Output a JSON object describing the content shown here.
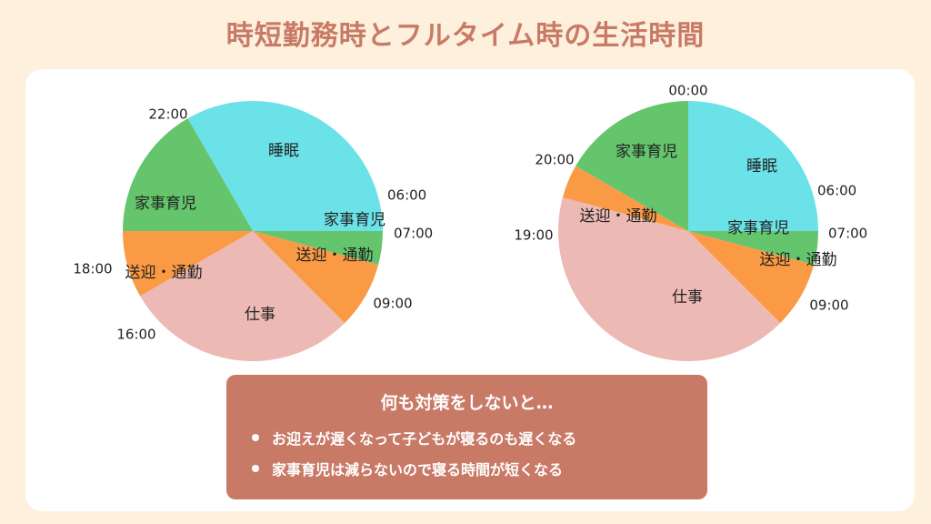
{
  "title": "時短勤務時とフルタイム時の生活時間",
  "colors": {
    "sleep": "#6be2e8",
    "chores": "#64c56c",
    "commute": "#fb9a44",
    "work": "#ecb9b4",
    "title": "#c97a66",
    "background": "#fdf0dc"
  },
  "chart_data": [
    {
      "type": "pie",
      "slices": [
        {
          "label": "睡眠",
          "start": "22:00",
          "end": "06:00",
          "hours": 8,
          "color": "sleep"
        },
        {
          "label": "家事育児",
          "start": "06:00",
          "end": "07:00",
          "hours": 1,
          "color": "chores"
        },
        {
          "label": "送迎・通勤",
          "start": "07:00",
          "end": "09:00",
          "hours": 2,
          "color": "commute"
        },
        {
          "label": "仕事",
          "start": "09:00",
          "end": "16:00",
          "hours": 7,
          "color": "work"
        },
        {
          "label": "送迎・通勤",
          "start": "16:00",
          "end": "18:00",
          "hours": 2,
          "color": "commute"
        },
        {
          "label": "家事育児",
          "start": "18:00",
          "end": "22:00",
          "hours": 4,
          "color": "chores"
        }
      ],
      "time_labels": [
        "22:00",
        "06:00",
        "07:00",
        "09:00",
        "16:00",
        "18:00"
      ]
    },
    {
      "type": "pie",
      "slices": [
        {
          "label": "睡眠",
          "start": "00:00",
          "end": "06:00",
          "hours": 6,
          "color": "sleep"
        },
        {
          "label": "家事育児",
          "start": "06:00",
          "end": "07:00",
          "hours": 1,
          "color": "chores"
        },
        {
          "label": "送迎・通勤",
          "start": "07:00",
          "end": "09:00",
          "hours": 2,
          "color": "commute"
        },
        {
          "label": "仕事",
          "start": "09:00",
          "end": "19:00",
          "hours": 10,
          "color": "work"
        },
        {
          "label": "送迎・通勤",
          "start": "19:00",
          "end": "20:00",
          "hours": 1,
          "color": "commute"
        },
        {
          "label": "家事育児",
          "start": "20:00",
          "end": "00:00",
          "hours": 4,
          "color": "chores"
        }
      ],
      "time_labels": [
        "00:00",
        "06:00",
        "07:00",
        "09:00",
        "19:00",
        "20:00"
      ]
    }
  ],
  "note": {
    "heading": "何も対策をしないと…",
    "items": [
      "お迎えが遅くなって子どもが寝るのも遅くなる",
      "家事育児は減らないので寝る時間が短くなる"
    ]
  }
}
